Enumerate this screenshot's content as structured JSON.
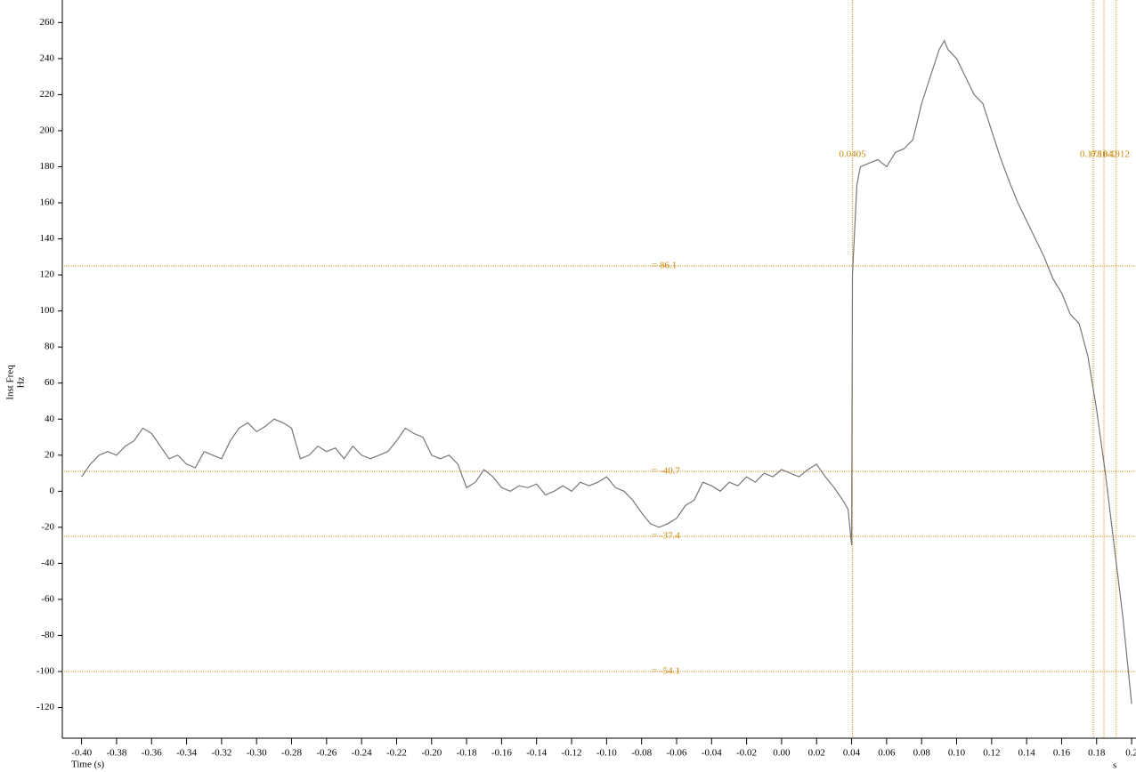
{
  "chart_data": {
    "type": "line",
    "y_label_1": "Inst Freq",
    "y_label_2": "Hz",
    "x_label": "Time (s)",
    "x_unit": "s",
    "color": "#777777",
    "cursor_color": "#d9952a",
    "xlim": [
      -0.411,
      0.2025
    ],
    "ylim": [
      -137,
      272.5
    ],
    "xticks": [
      {
        "value": -0.4,
        "label": "-0.40"
      },
      {
        "value": -0.38,
        "label": "-0.38"
      },
      {
        "value": -0.36,
        "label": "-0.36"
      },
      {
        "value": -0.34,
        "label": "-0.34"
      },
      {
        "value": -0.32,
        "label": "-0.32"
      },
      {
        "value": -0.3,
        "label": "-0.30"
      },
      {
        "value": -0.28,
        "label": "-0.28"
      },
      {
        "value": -0.26,
        "label": "-0.26"
      },
      {
        "value": -0.24,
        "label": "-0.24"
      },
      {
        "value": -0.22,
        "label": "-0.22"
      },
      {
        "value": -0.2,
        "label": "-0.20"
      },
      {
        "value": -0.18,
        "label": "-0.18"
      },
      {
        "value": -0.16,
        "label": "-0.16"
      },
      {
        "value": -0.14,
        "label": "-0.14"
      },
      {
        "value": -0.12,
        "label": "-0.12"
      },
      {
        "value": -0.1,
        "label": "-0.10"
      },
      {
        "value": -0.08,
        "label": "-0.08"
      },
      {
        "value": -0.06,
        "label": "-0.06"
      },
      {
        "value": -0.04,
        "label": "-0.04"
      },
      {
        "value": -0.02,
        "label": "-0.02"
      },
      {
        "value": 0,
        "label": "0.00"
      },
      {
        "value": 0.02,
        "label": "0.02"
      },
      {
        "value": 0.04,
        "label": "0.04"
      },
      {
        "value": 0.06,
        "label": "0.06"
      },
      {
        "value": 0.08,
        "label": "0.08"
      },
      {
        "value": 0.1,
        "label": "0.10"
      },
      {
        "value": 0.12,
        "label": "0.12"
      },
      {
        "value": 0.14,
        "label": "0.14"
      },
      {
        "value": 0.16,
        "label": "0.16"
      },
      {
        "value": 0.18,
        "label": "0.18"
      },
      {
        "value": 0.2,
        "label": "0.2"
      }
    ],
    "yticks": [
      -120,
      -100,
      -80,
      -60,
      -40,
      -20,
      0,
      20,
      40,
      60,
      80,
      100,
      120,
      140,
      160,
      180,
      200,
      220,
      240,
      260
    ],
    "hcursors": [
      {
        "value": 125,
        "label": "=  86.1"
      },
      {
        "value": 11,
        "label": "= -40.7"
      },
      {
        "value": -25,
        "label": "= -37.4"
      },
      {
        "value": -100,
        "label": "= -54.1"
      }
    ],
    "vcursors": [
      {
        "value": 0.0405,
        "label": "0.0405"
      },
      {
        "value": 0.1781,
        "label": "0.1781"
      },
      {
        "value": 0.1842,
        "label": "0.1842"
      },
      {
        "value": 0.1912,
        "label": "0.1912"
      }
    ],
    "x": [
      -0.4,
      -0.395,
      -0.39,
      -0.385,
      -0.38,
      -0.375,
      -0.37,
      -0.365,
      -0.36,
      -0.355,
      -0.35,
      -0.345,
      -0.34,
      -0.335,
      -0.33,
      -0.325,
      -0.32,
      -0.315,
      -0.31,
      -0.305,
      -0.3,
      -0.295,
      -0.29,
      -0.285,
      -0.28,
      -0.275,
      -0.27,
      -0.265,
      -0.26,
      -0.255,
      -0.25,
      -0.245,
      -0.24,
      -0.235,
      -0.23,
      -0.225,
      -0.22,
      -0.215,
      -0.21,
      -0.205,
      -0.2,
      -0.195,
      -0.19,
      -0.185,
      -0.18,
      -0.175,
      -0.17,
      -0.165,
      -0.16,
      -0.155,
      -0.15,
      -0.145,
      -0.14,
      -0.135,
      -0.13,
      -0.125,
      -0.12,
      -0.115,
      -0.11,
      -0.105,
      -0.1,
      -0.095,
      -0.09,
      -0.085,
      -0.08,
      -0.075,
      -0.07,
      -0.065,
      -0.06,
      -0.055,
      -0.05,
      -0.045,
      -0.04,
      -0.035,
      -0.03,
      -0.025,
      -0.02,
      -0.015,
      -0.01,
      -0.005,
      0,
      0.005,
      0.01,
      0.015,
      0.02,
      0.025,
      0.03,
      0.035,
      0.038,
      0.04,
      0.0405,
      0.042,
      0.043,
      0.045,
      0.05,
      0.055,
      0.06,
      0.065,
      0.07,
      0.075,
      0.08,
      0.085,
      0.09,
      0.093,
      0.095,
      0.1,
      0.105,
      0.11,
      0.115,
      0.12,
      0.125,
      0.13,
      0.135,
      0.14,
      0.145,
      0.15,
      0.155,
      0.16,
      0.165,
      0.17,
      0.175,
      0.18,
      0.185,
      0.19,
      0.195,
      0.2
    ],
    "values": [
      8,
      15,
      20,
      22,
      20,
      25,
      28,
      35,
      32,
      25,
      18,
      20,
      15,
      13,
      22,
      20,
      18,
      28,
      35,
      38,
      33,
      36,
      40,
      38,
      35,
      18,
      20,
      25,
      22,
      24,
      18,
      25,
      20,
      18,
      20,
      22,
      28,
      35,
      32,
      30,
      20,
      18,
      20,
      15,
      2,
      5,
      12,
      8,
      2,
      0,
      3,
      2,
      4,
      -2,
      0,
      3,
      0,
      5,
      3,
      5,
      8,
      2,
      0,
      -5,
      -12,
      -18,
      -20,
      -18,
      -15,
      -8,
      -5,
      5,
      3,
      0,
      5,
      3,
      8,
      5,
      10,
      8,
      12,
      10,
      8,
      12,
      15,
      8,
      2,
      -5,
      -10,
      -30,
      120,
      150,
      170,
      180,
      182,
      184,
      180,
      188,
      190,
      195,
      215,
      230,
      245,
      250,
      245,
      240,
      230,
      220,
      215,
      200,
      185,
      172,
      160,
      150,
      140,
      130,
      118,
      110,
      98,
      93,
      75,
      45,
      10,
      -30,
      -70,
      -118
    ]
  }
}
